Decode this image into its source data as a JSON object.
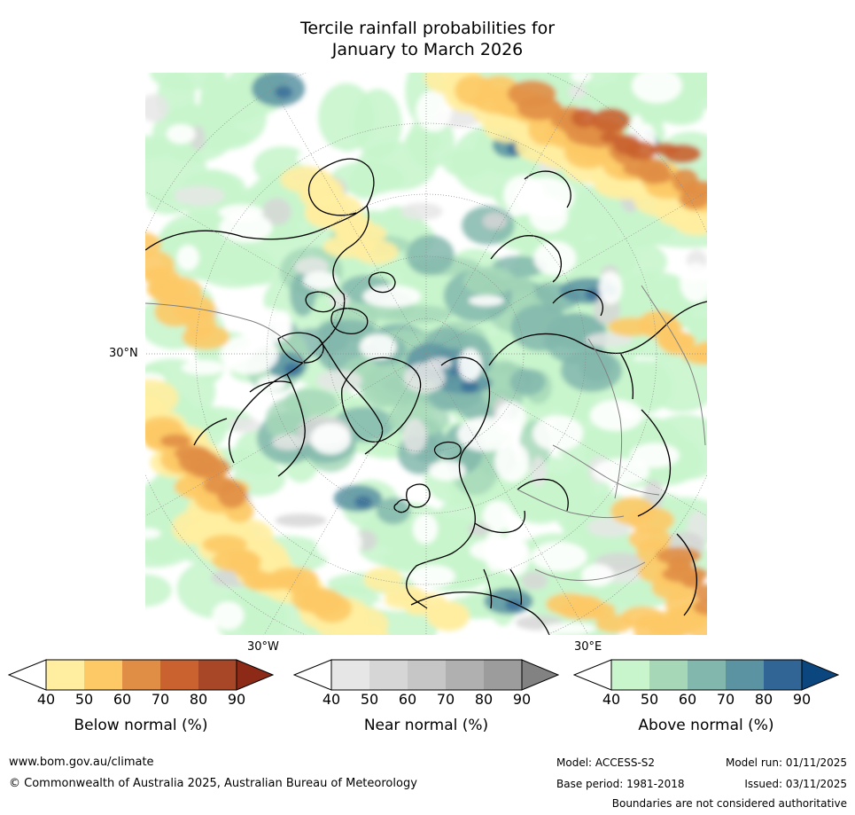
{
  "title": {
    "line1": "Tercile rainfall probabilities for",
    "line2": "January to March 2026"
  },
  "map": {
    "projection": "north-polar-stereographic",
    "lat_label": "30°N",
    "lon_label_left": "30°W",
    "lon_label_right": "30°E",
    "ocean_color": "#ffffff",
    "coast_color": "#000000",
    "border_color": "#808080",
    "grid_color": "#8a8a8a"
  },
  "colorbars": [
    {
      "name": "Below normal (%)",
      "ticks": [
        "40",
        "50",
        "60",
        "70",
        "80",
        "90"
      ],
      "colors": [
        "#ffffff",
        "#ffeea0",
        "#fdc966",
        "#e08e45",
        "#c9622f",
        "#a84727",
        "#8c2a17"
      ]
    },
    {
      "name": "Near normal (%)",
      "ticks": [
        "40",
        "50",
        "60",
        "70",
        "80",
        "90"
      ],
      "colors": [
        "#ffffff",
        "#e6e6e6",
        "#d6d6d6",
        "#c6c6c6",
        "#b0b0b0",
        "#9c9c9c",
        "#828282"
      ]
    },
    {
      "name": "Above normal (%)",
      "ticks": [
        "40",
        "50",
        "60",
        "70",
        "80",
        "90"
      ],
      "colors": [
        "#ffffff",
        "#c8f5cc",
        "#a6d8b8",
        "#82b7ad",
        "#5b93a2",
        "#316596",
        "#0b467e"
      ]
    }
  ],
  "footer": {
    "website": "www.bom.gov.au/climate",
    "copyright": "© Commonwealth of Australia 2025, Australian Bureau of Meteorology",
    "model": "Model: ACCESS-S2",
    "model_run": "Model run: 01/11/2025",
    "base_period": "Base period: 1981-2018",
    "issued": "Issued: 03/11/2025",
    "disclaimer": "Boundaries are not considered authoritative"
  }
}
